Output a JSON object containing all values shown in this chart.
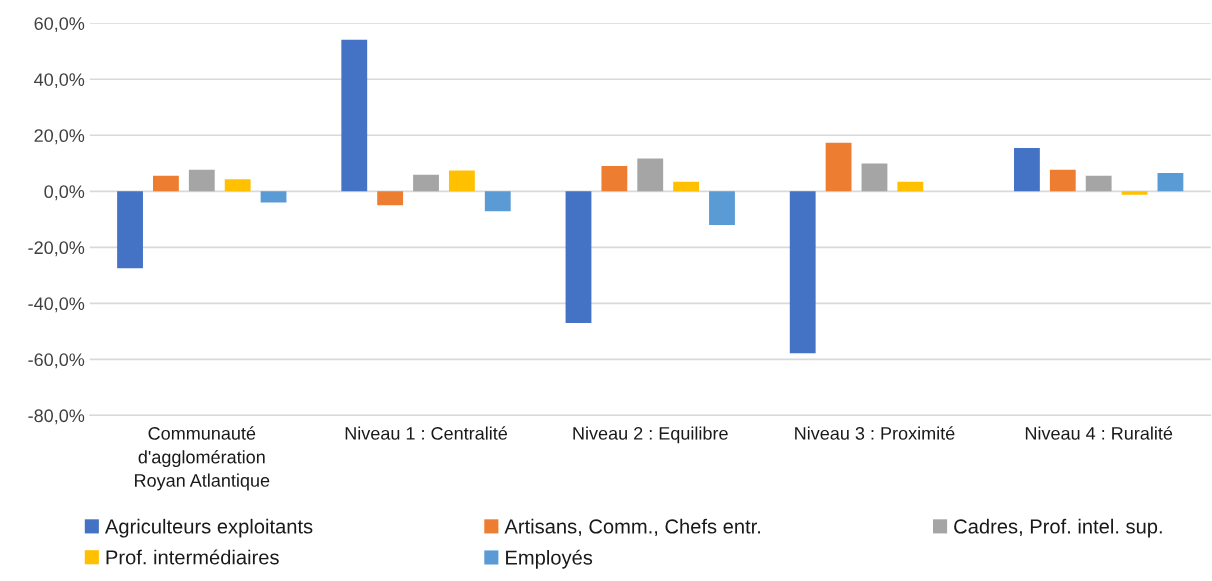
{
  "chart_data": {
    "type": "bar",
    "categories": [
      "Communauté\nd'agglomération\nRoyan Atlantique",
      "Niveau 1 : Centralité",
      "Niveau 2 : Equilibre",
      "Niveau 3 : Proximité",
      "Niveau 4 : Ruralité"
    ],
    "series": [
      {
        "name": "Agriculteurs exploitants",
        "color": "#4472c4",
        "values": [
          -27.5,
          54.1,
          -47.0,
          -57.8,
          15.5
        ]
      },
      {
        "name": "Artisans, Comm., Chefs entr.",
        "color": "#ed7d31",
        "values": [
          5.6,
          -5.0,
          9.0,
          17.3,
          7.7
        ]
      },
      {
        "name": "Cadres, Prof. intel. sup.",
        "color": "#a5a5a5",
        "values": [
          7.7,
          5.9,
          11.7,
          9.9,
          5.6
        ]
      },
      {
        "name": "Prof. intermédiaires",
        "color": "#ffc000",
        "values": [
          4.3,
          7.4,
          3.4,
          3.4,
          -1.2
        ]
      },
      {
        "name": "Employés",
        "color": "#5b9bd5",
        "values": [
          -4.0,
          -7.1,
          -12.0,
          null,
          6.5
        ]
      }
    ],
    "ylim": [
      -80,
      60
    ],
    "yticks": [
      {
        "value": -80,
        "label": "-80,0%"
      },
      {
        "value": -60,
        "label": "-60,0%"
      },
      {
        "value": -40,
        "label": "-40,0%"
      },
      {
        "value": -20,
        "label": "-20,0%"
      },
      {
        "value": 0,
        "label": "0,0%"
      },
      {
        "value": 20,
        "label": "20,0%"
      },
      {
        "value": 40,
        "label": "40,0%"
      },
      {
        "value": 60,
        "label": "60,0%"
      }
    ],
    "grid": "y",
    "legend": "bottom"
  }
}
